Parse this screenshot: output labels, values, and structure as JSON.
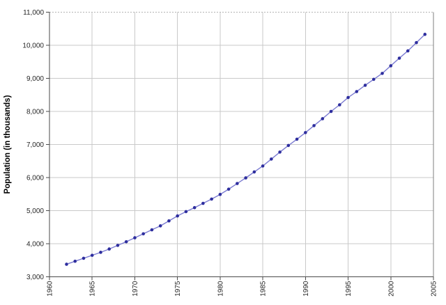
{
  "chart_data": {
    "type": "line",
    "title": "",
    "xlabel": "",
    "ylabel": "Population (in thousands)",
    "series_name": "population",
    "x": [
      1962,
      1963,
      1964,
      1965,
      1966,
      1967,
      1968,
      1969,
      1970,
      1971,
      1972,
      1973,
      1974,
      1975,
      1976,
      1977,
      1978,
      1979,
      1980,
      1981,
      1982,
      1983,
      1984,
      1985,
      1986,
      1987,
      1988,
      1989,
      1990,
      1991,
      1992,
      1993,
      1994,
      1995,
      1996,
      1997,
      1998,
      1999,
      2000,
      2001,
      2002,
      2003,
      2004
    ],
    "values": [
      3380,
      3470,
      3560,
      3650,
      3740,
      3840,
      3950,
      4060,
      4180,
      4300,
      4420,
      4540,
      4690,
      4840,
      4970,
      5090,
      5220,
      5350,
      5490,
      5650,
      5820,
      5990,
      6170,
      6350,
      6560,
      6770,
      6970,
      7160,
      7360,
      7570,
      7780,
      8000,
      8200,
      8420,
      8600,
      8790,
      8970,
      9150,
      9380,
      9610,
      9830,
      10080,
      10330
    ],
    "xlim": [
      1960,
      2005
    ],
    "ylim": [
      3000,
      11000
    ],
    "xticks": [
      1960,
      1965,
      1970,
      1975,
      1980,
      1985,
      1990,
      1995,
      2000,
      2005
    ],
    "yticks": [
      3000,
      4000,
      5000,
      6000,
      7000,
      8000,
      9000,
      10000,
      11000
    ],
    "ytick_labels": [
      "3,000",
      "4,000",
      "5,000",
      "6,000",
      "7,000",
      "8,000",
      "9,000",
      "10,000",
      "11,000"
    ],
    "xtick_labels": [
      "1960",
      "1965",
      "1970",
      "1975",
      "1980",
      "1985",
      "1990",
      "1995",
      "2000",
      "2005"
    ],
    "grid": true,
    "legend": false,
    "marker": "circle",
    "colors": {
      "line": "#7b7bd1",
      "marker": "#2e2e9e",
      "grid": "#c9c9c9",
      "axis": "#4a4a4a",
      "border_top": "#b3b3b3",
      "border_right": "#7f7f7f",
      "tick_label": "#262626",
      "axis_title": "#000000",
      "background": "#ffffff"
    }
  }
}
